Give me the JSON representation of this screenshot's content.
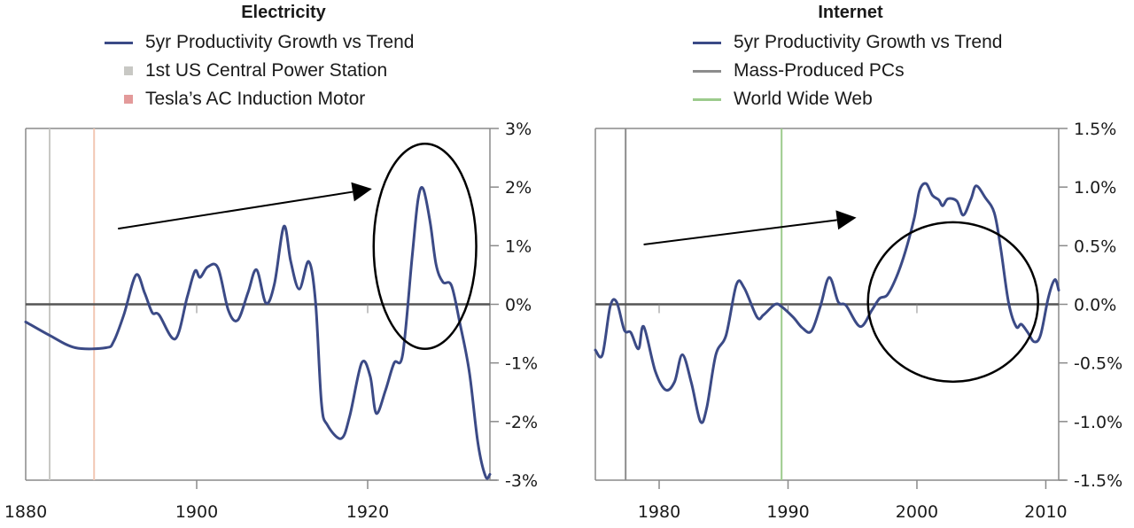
{
  "chart_data": [
    {
      "type": "line",
      "title": "Electricity",
      "xlabel": "",
      "ylabel": "",
      "xlim": [
        1880,
        1934.3
      ],
      "ylim": [
        -3,
        3
      ],
      "y_axis_side": "right",
      "xticks": [
        1880,
        1900,
        1920
      ],
      "xtick_labels": [
        "1880",
        "1900",
        "1920"
      ],
      "yticks": [
        3,
        2,
        1,
        0,
        -1,
        -2,
        -3
      ],
      "ytick_labels": [
        "3%",
        "2%",
        "1%",
        "0%",
        "-1%",
        "-2%",
        "-3%"
      ],
      "legend_position": "top-center",
      "legend": [
        {
          "label": "5yr Productivity Growth vs Trend",
          "color": "#3b4a86",
          "kind": "line"
        },
        {
          "label": "1st US Central Power Station",
          "color": "#c8c8c4",
          "kind": "square"
        },
        {
          "label": "Tesla’s AC Induction Motor",
          "color": "#e39a9a",
          "kind": "square"
        }
      ],
      "series": [
        {
          "name": "5yr Productivity Growth vs Trend",
          "color": "#3b4a86",
          "x": [
            1880,
            1882.8,
            1885.8,
            1889.4,
            1890.3,
            1891.5,
            1892.9,
            1893.9,
            1894.8,
            1895.6,
            1897.5,
            1898.9,
            1899.8,
            1900.4,
            1901.3,
            1902.5,
            1903.7,
            1904.8,
            1906.0,
            1907.0,
            1908.1,
            1909.1,
            1910.2,
            1911.0,
            1912.0,
            1913.1,
            1913.9,
            1914.6,
            1915.3,
            1916.9,
            1917.9,
            1919.3,
            1920.3,
            1921.0,
            1922.1,
            1923.1,
            1924.1,
            1925.2,
            1925.9,
            1926.5,
            1927.3,
            1928.0,
            1928.8,
            1929.8,
            1930.8,
            1931.9,
            1932.9,
            1933.8,
            1934.3
          ],
          "values": [
            -0.3,
            -0.53,
            -0.74,
            -0.74,
            -0.63,
            -0.17,
            0.5,
            0.2,
            -0.14,
            -0.18,
            -0.59,
            0.13,
            0.57,
            0.46,
            0.64,
            0.62,
            -0.1,
            -0.27,
            0.2,
            0.59,
            0.02,
            0.35,
            1.33,
            0.73,
            0.26,
            0.73,
            0.05,
            -1.69,
            -2.06,
            -2.29,
            -1.91,
            -1.0,
            -1.23,
            -1.86,
            -1.46,
            -1.0,
            -0.85,
            0.81,
            1.79,
            1.97,
            1.41,
            0.68,
            0.38,
            0.32,
            -0.33,
            -1.16,
            -2.37,
            -2.94,
            -2.9
          ]
        }
      ],
      "vertical_markers": [
        {
          "label": "1st US Central Power Station",
          "x": 1882.8,
          "color": "#c8c8c4"
        },
        {
          "label": "Tesla’s AC Induction Motor",
          "x": 1888.0,
          "color": "#f2c7b4"
        }
      ],
      "annotations": {
        "arrow": {
          "from": [
            1890.8,
            1.29
          ],
          "to": [
            1920.5,
            1.97
          ]
        },
        "ellipse": {
          "center": [
            1926.7,
            0.99
          ],
          "rx_years": 6.0,
          "ry_value": 1.75
        }
      }
    },
    {
      "type": "line",
      "title": "Internet",
      "xlabel": "",
      "ylabel": "",
      "xlim": [
        1975.05,
        2011.0
      ],
      "ylim": [
        -1.5,
        1.5
      ],
      "y_axis_side": "right",
      "xticks": [
        1980,
        1990,
        2000,
        2010
      ],
      "xtick_labels": [
        "1980",
        "1990",
        "2000",
        "2010"
      ],
      "yticks": [
        1.5,
        1.0,
        0.5,
        0.0,
        -0.5,
        -1.0,
        -1.5
      ],
      "ytick_labels": [
        "1.5%",
        "1.0%",
        "0.5%",
        "0.0%",
        "-0.5%",
        "-1.0%",
        "-1.5%"
      ],
      "legend_position": "top-center",
      "legend": [
        {
          "label": "5yr Productivity Growth vs Trend",
          "color": "#3b4a86",
          "kind": "line"
        },
        {
          "label": "Mass-Produced PCs",
          "color": "#8c8c8c",
          "kind": "line"
        },
        {
          "label": "World Wide Web",
          "color": "#9ccb8c",
          "kind": "line"
        }
      ],
      "series": [
        {
          "name": "5yr Productivity Growth vs Trend",
          "color": "#3b4a86",
          "x": [
            1975.05,
            1975.6,
            1976.2,
            1976.7,
            1977.3,
            1977.8,
            1978.4,
            1978.8,
            1979.7,
            1980.5,
            1981.2,
            1981.8,
            1982.5,
            1983.2,
            1983.7,
            1984.4,
            1985.2,
            1986.0,
            1986.6,
            1987.6,
            1988.1,
            1989.0,
            1989.5,
            1990.4,
            1991.1,
            1991.8,
            1992.5,
            1993.2,
            1993.9,
            1994.5,
            1995.6,
            1996.5,
            1997.1,
            1997.7,
            1998.4,
            1999.1,
            1999.8,
            2000.2,
            2000.7,
            2001.2,
            2001.7,
            2002.0,
            2002.4,
            2003.1,
            2003.6,
            2004.2,
            2004.6,
            2005.3,
            2006.0,
            2006.5,
            2007.1,
            2007.7,
            2008.1,
            2008.6,
            2009.1,
            2009.6,
            2010.2,
            2010.7,
            2011.0
          ],
          "values": [
            -0.39,
            -0.43,
            -0.02,
            0.02,
            -0.22,
            -0.24,
            -0.38,
            -0.19,
            -0.57,
            -0.73,
            -0.66,
            -0.43,
            -0.67,
            -1.0,
            -0.88,
            -0.43,
            -0.26,
            0.17,
            0.14,
            -0.11,
            -0.09,
            0.0,
            -0.02,
            -0.11,
            -0.2,
            -0.23,
            -0.02,
            0.23,
            0.02,
            -0.01,
            -0.19,
            -0.05,
            0.05,
            0.08,
            0.23,
            0.45,
            0.74,
            0.97,
            1.03,
            0.93,
            0.89,
            0.84,
            0.9,
            0.88,
            0.76,
            0.9,
            1.01,
            0.91,
            0.78,
            0.48,
            0.02,
            -0.19,
            -0.17,
            -0.24,
            -0.32,
            -0.26,
            0.06,
            0.21,
            0.12
          ]
        }
      ],
      "vertical_markers": [
        {
          "label": "Mass-Produced PCs",
          "x": 1977.4,
          "color": "#8c8c8c"
        },
        {
          "label": "World Wide Web",
          "x": 1989.5,
          "color": "#9ccb8c"
        }
      ],
      "annotations": {
        "arrow": {
          "from": [
            1978.8,
            0.51
          ],
          "to": [
            1995.3,
            0.74
          ]
        },
        "ellipse": {
          "center": [
            2002.8,
            0.02
          ],
          "rx_years": 6.6,
          "ry_value": 0.68
        }
      }
    }
  ]
}
